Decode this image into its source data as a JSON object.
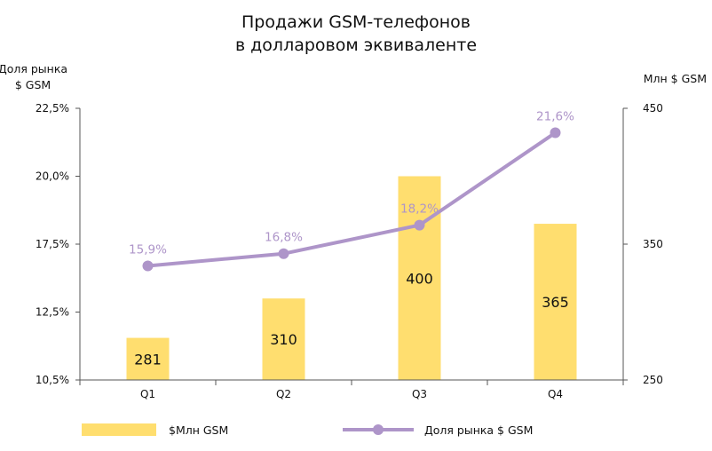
{
  "chart_data": {
    "type": "bar",
    "title": [
      "Продажи GSM-телефонов",
      "в долларовом эквиваленте"
    ],
    "categories": [
      "Q1",
      "Q2",
      "Q3",
      "Q4"
    ],
    "series": [
      {
        "name": "$Млн GSM",
        "type": "bar",
        "axis": "right",
        "values": [
          281,
          310,
          400,
          365
        ],
        "data_labels": [
          "281",
          "310",
          "400",
          "365"
        ],
        "color": "#FFDE6F"
      },
      {
        "name": "Доля рынка $ GSM",
        "type": "line",
        "axis": "left",
        "values": [
          15.9,
          16.8,
          18.2,
          21.6
        ],
        "data_labels": [
          "15,9%",
          "16,8%",
          "18,2%",
          "21,6%"
        ],
        "color": "#AE95C9"
      }
    ],
    "y_left": {
      "label": [
        "Доля рынка",
        "$ GSM"
      ],
      "ticks": [
        10.5,
        12.5,
        17.5,
        20.0,
        22.5
      ],
      "tick_labels": [
        "10,5%",
        "12,5%",
        "17,5%",
        "20,0%",
        "22,5%"
      ],
      "ylim": [
        10.5,
        22.5
      ]
    },
    "y_right": {
      "label": "Млн $ GSM",
      "ticks": [
        250,
        350,
        450
      ],
      "tick_labels": [
        "250",
        "350",
        "450"
      ],
      "ylim": [
        250,
        450
      ]
    },
    "grid": false,
    "legend": "bottom"
  }
}
